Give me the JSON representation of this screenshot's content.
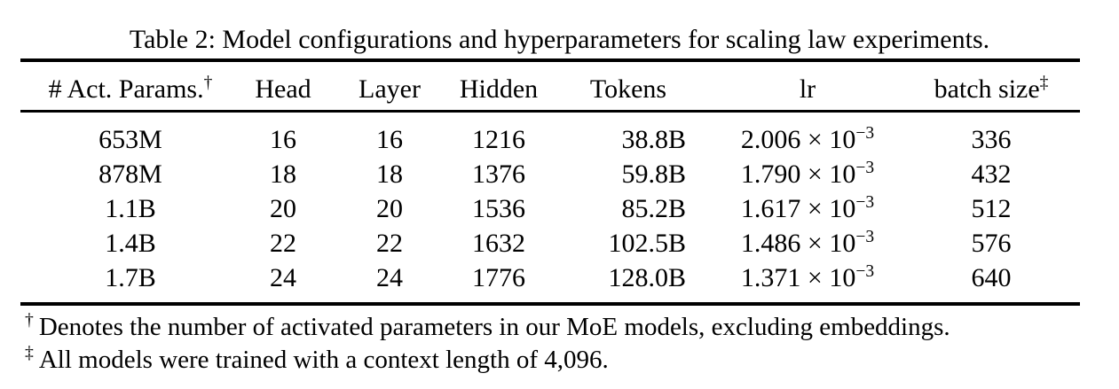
{
  "caption": "Table 2: Model configurations and hyperparameters for scaling law experiments.",
  "table": {
    "columns": [
      {
        "label": "# Act. Params.",
        "sup": "†"
      },
      {
        "label": "Head",
        "sup": ""
      },
      {
        "label": "Layer",
        "sup": ""
      },
      {
        "label": "Hidden",
        "sup": ""
      },
      {
        "label": "Tokens",
        "sup": ""
      },
      {
        "label": "lr",
        "sup": ""
      },
      {
        "label": "batch size",
        "sup": "‡"
      }
    ],
    "rows": [
      {
        "act_params": "653M",
        "head": "16",
        "layer": "16",
        "hidden": "1216",
        "tokens": "38.8B",
        "lr_mantissa": "2.006 × 10",
        "lr_exp": "−3",
        "batch_size": "336"
      },
      {
        "act_params": "878M",
        "head": "18",
        "layer": "18",
        "hidden": "1376",
        "tokens": "59.8B",
        "lr_mantissa": "1.790 × 10",
        "lr_exp": "−3",
        "batch_size": "432"
      },
      {
        "act_params": "1.1B",
        "head": "20",
        "layer": "20",
        "hidden": "1536",
        "tokens": "85.2B",
        "lr_mantissa": "1.617 × 10",
        "lr_exp": "−3",
        "batch_size": "512"
      },
      {
        "act_params": "1.4B",
        "head": "22",
        "layer": "22",
        "hidden": "1632",
        "tokens": "102.5B",
        "lr_mantissa": "1.486 × 10",
        "lr_exp": "−3",
        "batch_size": "576"
      },
      {
        "act_params": "1.7B",
        "head": "24",
        "layer": "24",
        "hidden": "1776",
        "tokens": "128.0B",
        "lr_mantissa": "1.371 × 10",
        "lr_exp": "−3",
        "batch_size": "640"
      }
    ]
  },
  "footnotes": [
    {
      "sup": "†",
      "text": "Denotes the number of activated parameters in our MoE models, excluding embeddings."
    },
    {
      "sup": "‡",
      "text": "All models were trained with a context length of 4,096."
    }
  ]
}
